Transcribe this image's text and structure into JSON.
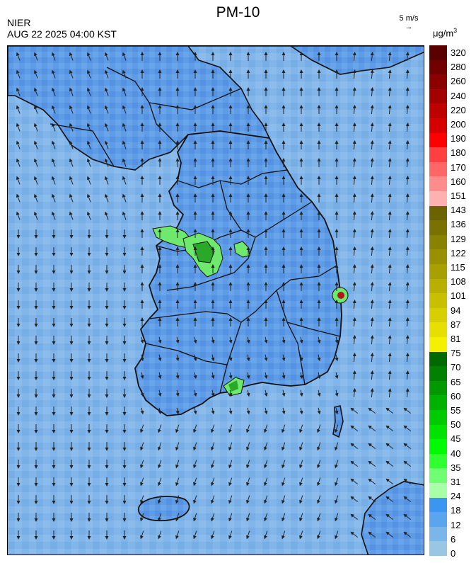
{
  "title": "PM-10",
  "agency": "NIER",
  "timestamp": "AUG 22 2025 04:00 KST",
  "wind_reference": {
    "label": "5 m/s",
    "arrow": "→"
  },
  "unit": {
    "base": "μg/m",
    "exp": "3"
  },
  "colorbar": {
    "labels": [
      "320",
      "280",
      "260",
      "240",
      "220",
      "200",
      "190",
      "180",
      "170",
      "160",
      "151",
      "143",
      "136",
      "129",
      "122",
      "115",
      "108",
      "101",
      "94",
      "87",
      "81",
      "75",
      "70",
      "65",
      "60",
      "55",
      "50",
      "45",
      "40",
      "35",
      "31",
      "24",
      "18",
      "12",
      "6",
      "0"
    ],
    "colors": [
      "#5a0000",
      "#720000",
      "#8b0000",
      "#a40000",
      "#bd0000",
      "#d60000",
      "#ff0000",
      "#ff4040",
      "#ff6666",
      "#ff8c8c",
      "#ffb0b0",
      "#6b6300",
      "#7a7200",
      "#898100",
      "#999000",
      "#a8a000",
      "#b8af00",
      "#c8bf00",
      "#d8cf00",
      "#e8df00",
      "#f5f000",
      "#006a00",
      "#008200",
      "#009a00",
      "#00b200",
      "#00ca00",
      "#00e200",
      "#00fa00",
      "#30ff30",
      "#70ff70",
      "#a8ffa8",
      "#3a96f0",
      "#5aa6ee",
      "#7ab6ea",
      "#9ac6e6"
    ]
  },
  "map": {
    "background_color": "#7fb3e8",
    "land_color": "#5d9ae6",
    "hotspot_colors": {
      "green": "#6ee96e",
      "dark_green": "#29a829",
      "red": "#b01818"
    },
    "wind_field": "predominantly southerly over peninsula, northerly/southward offshore to west and south"
  }
}
